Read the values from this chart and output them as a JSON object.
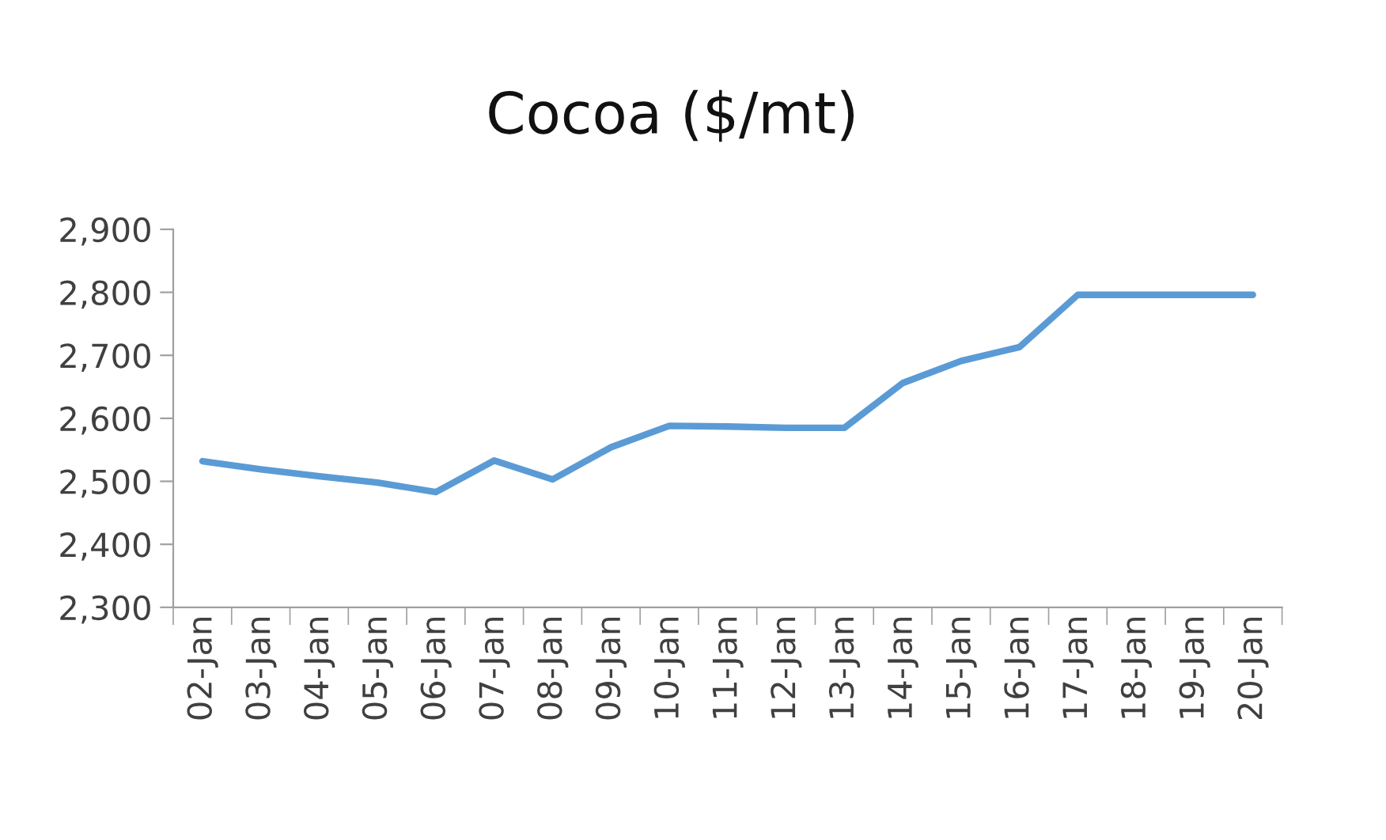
{
  "chart_data": {
    "type": "line",
    "title": "Cocoa ($/mt)",
    "categories": [
      "02-Jan",
      "03-Jan",
      "04-Jan",
      "05-Jan",
      "06-Jan",
      "07-Jan",
      "08-Jan",
      "09-Jan",
      "10-Jan",
      "11-Jan",
      "12-Jan",
      "13-Jan",
      "14-Jan",
      "15-Jan",
      "16-Jan",
      "17-Jan",
      "18-Jan",
      "19-Jan",
      "20-Jan"
    ],
    "series": [
      {
        "color": "#5b9bd5",
        "values": [
          2532,
          2519,
          2508,
          2498,
          2483,
          2533,
          2503,
          2554,
          2588,
          2587,
          2585,
          2585,
          2656,
          2691,
          2713,
          2796,
          2796,
          2796,
          2796
        ]
      }
    ],
    "ylim": [
      2300,
      2900
    ],
    "yticks": [
      {
        "value": 2300,
        "label": "2,300"
      },
      {
        "value": 2400,
        "label": "2,400"
      },
      {
        "value": 2500,
        "label": "2,500"
      },
      {
        "value": 2600,
        "label": "2,600"
      },
      {
        "value": 2700,
        "label": "2,700"
      },
      {
        "value": 2800,
        "label": "2,800"
      },
      {
        "value": 2900,
        "label": "2,900"
      }
    ],
    "grid": false,
    "marker": "none",
    "line_style": "solid"
  }
}
